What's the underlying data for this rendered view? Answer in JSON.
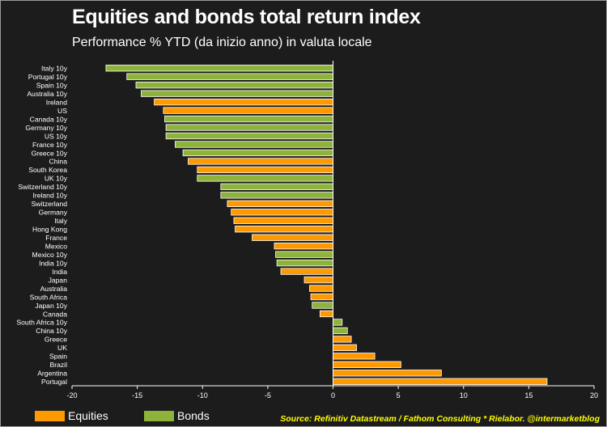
{
  "chart_data": {
    "type": "bar",
    "orientation": "horizontal",
    "title": "Equities and bonds total return index",
    "subtitle": "Performance % YTD (da inizio anno) in valuta locale",
    "xlim": [
      -20,
      20
    ],
    "xticks": [
      "-20",
      "-15",
      "-10",
      "-5",
      "0",
      "5",
      "10",
      "15",
      "20"
    ],
    "grid": false,
    "legend_position": "bottom-left",
    "legend": [
      {
        "name": "Equities",
        "color": "#ff9900"
      },
      {
        "name": "Bonds",
        "color": "#8db33a"
      }
    ],
    "bars": [
      {
        "label": "Italy 10y",
        "value": -17.4,
        "type": "Bonds"
      },
      {
        "label": "Portugal 10y",
        "value": -15.8,
        "type": "Bonds"
      },
      {
        "label": "Spain 10y",
        "value": -15.1,
        "type": "Bonds"
      },
      {
        "label": "Australia 10y",
        "value": -14.7,
        "type": "Bonds"
      },
      {
        "label": "Ireland",
        "value": -13.7,
        "type": "Equities"
      },
      {
        "label": "US",
        "value": -13.0,
        "type": "Equities"
      },
      {
        "label": "Canada 10y",
        "value": -12.9,
        "type": "Bonds"
      },
      {
        "label": "Germany 10y",
        "value": -12.8,
        "type": "Bonds"
      },
      {
        "label": "US 10y",
        "value": -12.8,
        "type": "Bonds"
      },
      {
        "label": "France 10y",
        "value": -12.1,
        "type": "Bonds"
      },
      {
        "label": "Greece 10y",
        "value": -11.5,
        "type": "Bonds"
      },
      {
        "label": "China",
        "value": -11.1,
        "type": "Equities"
      },
      {
        "label": "South Korea",
        "value": -10.4,
        "type": "Equities"
      },
      {
        "label": "UK 10y",
        "value": -10.4,
        "type": "Bonds"
      },
      {
        "label": "Switzerland 10y",
        "value": -8.6,
        "type": "Bonds"
      },
      {
        "label": "Ireland 10y",
        "value": -8.6,
        "type": "Bonds"
      },
      {
        "label": "Switzerland",
        "value": -8.1,
        "type": "Equities"
      },
      {
        "label": "Germany",
        "value": -7.8,
        "type": "Equities"
      },
      {
        "label": "Italy",
        "value": -7.6,
        "type": "Equities"
      },
      {
        "label": "Hong Kong",
        "value": -7.5,
        "type": "Equities"
      },
      {
        "label": "France",
        "value": -6.2,
        "type": "Equities"
      },
      {
        "label": "Mexico",
        "value": -4.5,
        "type": "Equities"
      },
      {
        "label": "Mexico 10y",
        "value": -4.4,
        "type": "Bonds"
      },
      {
        "label": "India 10y",
        "value": -4.3,
        "type": "Bonds"
      },
      {
        "label": "India",
        "value": -4.0,
        "type": "Equities"
      },
      {
        "label": "Japan",
        "value": -2.2,
        "type": "Equities"
      },
      {
        "label": "Australia",
        "value": -1.8,
        "type": "Equities"
      },
      {
        "label": "South Africa",
        "value": -1.7,
        "type": "Equities"
      },
      {
        "label": "Japan 10y",
        "value": -1.6,
        "type": "Bonds"
      },
      {
        "label": "Canada",
        "value": -1.0,
        "type": "Equities"
      },
      {
        "label": "South Africa 10y",
        "value": 0.7,
        "type": "Bonds"
      },
      {
        "label": "China 10y",
        "value": 1.1,
        "type": "Bonds"
      },
      {
        "label": "Greece",
        "value": 1.4,
        "type": "Equities"
      },
      {
        "label": "UK",
        "value": 1.8,
        "type": "Equities"
      },
      {
        "label": "Spain",
        "value": 3.2,
        "type": "Equities"
      },
      {
        "label": "Brazil",
        "value": 5.2,
        "type": "Equities"
      },
      {
        "label": "Argentina",
        "value": 8.3,
        "type": "Equities"
      },
      {
        "label": "Portugal",
        "value": 16.4,
        "type": "Equities"
      }
    ]
  },
  "source": "Source: Refinitiv Datastream / Fathom Consulting * Rielabor. @intermarketblog"
}
